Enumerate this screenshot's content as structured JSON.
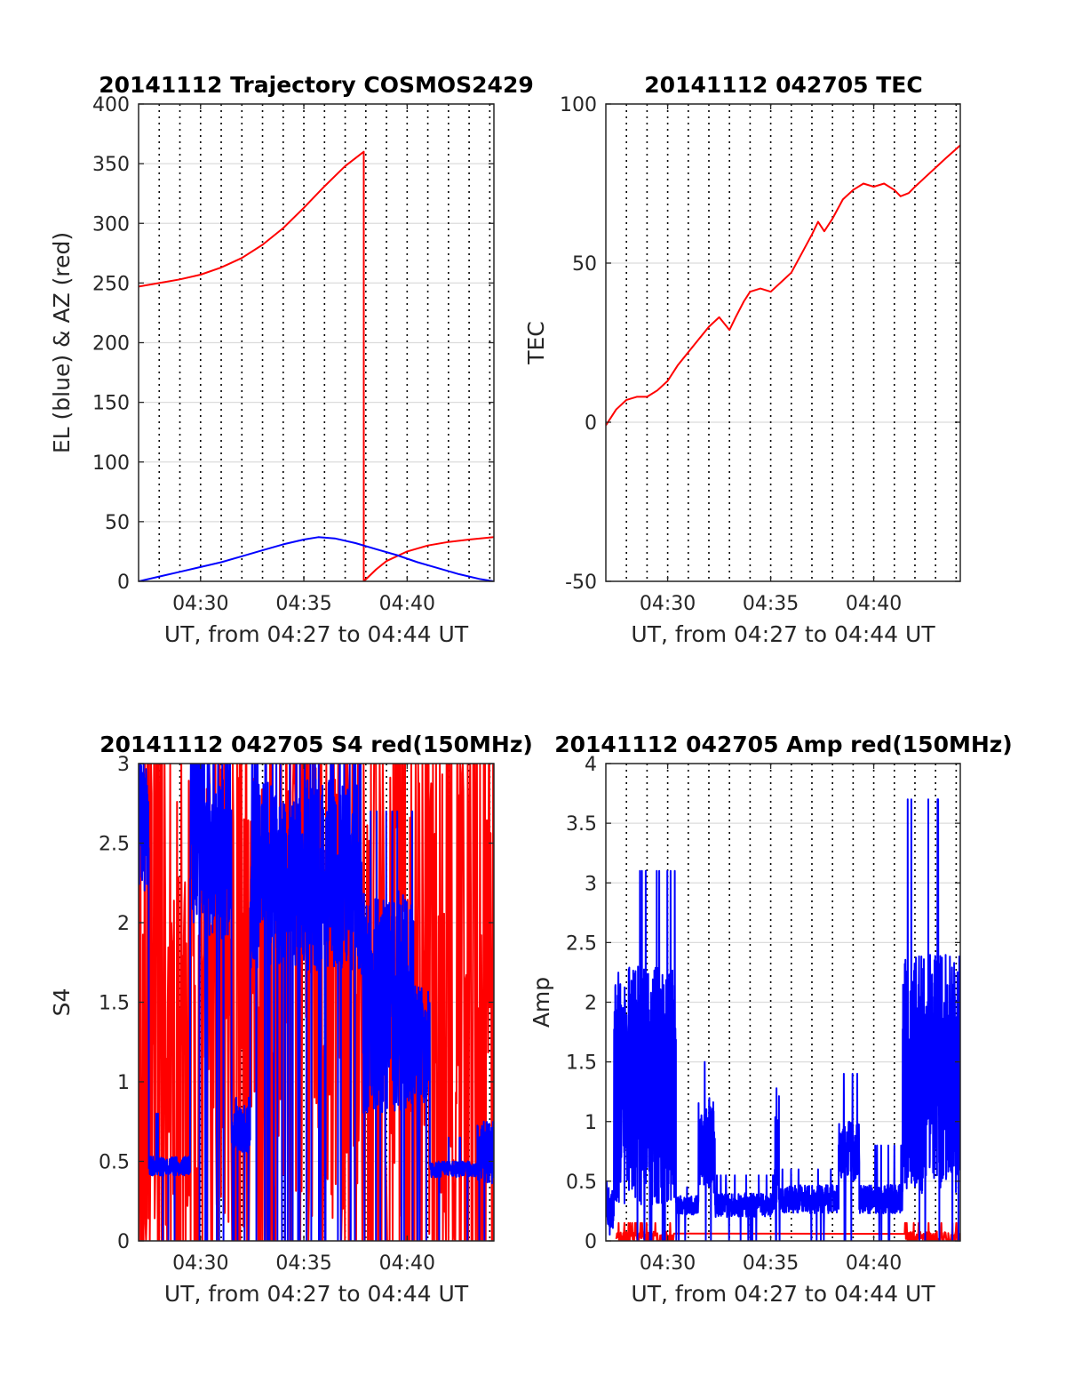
{
  "chart_data": [
    {
      "type": "line",
      "title": "20141112 Trajectory COSMOS2429",
      "xlabel": "UT, from 04:27 to 04:44 UT",
      "ylabel": "EL (blue) & AZ (red)",
      "xlim": [
        27,
        44.2
      ],
      "ylim": [
        0,
        400
      ],
      "xticks": [
        {
          "v": 30,
          "label": "04:30"
        },
        {
          "v": 35,
          "label": "04:35"
        },
        {
          "v": 40,
          "label": "04:40"
        }
      ],
      "yticks": [
        {
          "v": 0,
          "label": "0"
        },
        {
          "v": 50,
          "label": "50"
        },
        {
          "v": 100,
          "label": "100"
        },
        {
          "v": 150,
          "label": "150"
        },
        {
          "v": 200,
          "label": "200"
        },
        {
          "v": 250,
          "label": "250"
        },
        {
          "v": 300,
          "label": "300"
        },
        {
          "v": 350,
          "label": "350"
        },
        {
          "v": 400,
          "label": "400"
        }
      ],
      "grid": {
        "vertical_dotted_every_min": 1,
        "horizontal": true
      },
      "series": [
        {
          "color": "#ff0000",
          "kind": "line",
          "x": [
            27,
            28,
            29,
            30,
            31,
            32,
            33,
            34,
            35,
            36,
            37,
            37.9,
            37.9,
            38.5,
            39,
            40,
            41,
            42,
            43,
            44.2
          ],
          "y": [
            247,
            250,
            253,
            257,
            263,
            271,
            282,
            296,
            313,
            331,
            348,
            360,
            0,
            10,
            17,
            25,
            30,
            33,
            35,
            37
          ]
        },
        {
          "color": "#0000ff",
          "kind": "line",
          "x": [
            27,
            28,
            29,
            30,
            31,
            32,
            33,
            34,
            35,
            35.7,
            36.5,
            37.5,
            38.5,
            39.5,
            40.5,
            41.5,
            42.5,
            43.5,
            44.2
          ],
          "y": [
            0,
            4,
            8,
            12,
            16,
            21,
            26,
            31,
            35,
            37,
            36,
            32,
            27,
            22,
            16,
            11,
            6,
            2,
            0
          ]
        }
      ]
    },
    {
      "type": "line",
      "title": "20141112 042705 TEC",
      "xlabel": "UT, from 04:27 to 04:44 UT",
      "ylabel": "TEC",
      "xlim": [
        27,
        44.2
      ],
      "ylim": [
        -50,
        100
      ],
      "xticks": [
        {
          "v": 30,
          "label": "04:30"
        },
        {
          "v": 35,
          "label": "04:35"
        },
        {
          "v": 40,
          "label": "04:40"
        }
      ],
      "yticks": [
        {
          "v": -50,
          "label": "-50"
        },
        {
          "v": 0,
          "label": "0"
        },
        {
          "v": 50,
          "label": "50"
        },
        {
          "v": 100,
          "label": "100"
        }
      ],
      "grid": {
        "vertical_dotted_every_min": 1,
        "horizontal": true
      },
      "series": [
        {
          "color": "#ff0000",
          "kind": "line",
          "x": [
            27,
            27.5,
            28,
            28.5,
            29,
            29.5,
            30,
            30.5,
            31,
            31.5,
            32,
            32.5,
            33,
            33.3,
            33.7,
            34,
            34.5,
            35,
            35.5,
            36,
            36.5,
            37,
            37.3,
            37.6,
            38,
            38.5,
            39,
            39.5,
            40,
            40.5,
            41,
            41.3,
            41.7,
            42,
            42.5,
            43,
            43.5,
            44.2
          ],
          "y": [
            -1,
            4,
            7,
            8,
            8,
            10,
            13,
            18,
            22,
            26,
            30,
            33,
            29,
            33,
            38,
            41,
            42,
            41,
            44,
            47,
            53,
            59,
            63,
            60,
            64,
            70,
            73,
            75,
            74,
            75,
            73,
            71,
            72,
            74,
            77,
            80,
            83,
            87
          ]
        }
      ]
    },
    {
      "type": "line",
      "title": "20141112 042705 S4 red(150MHz)",
      "xlabel": "UT, from 04:27 to 04:44 UT",
      "ylabel": "S4",
      "xlim": [
        27,
        44.2
      ],
      "ylim": [
        0,
        3
      ],
      "xticks": [
        {
          "v": 30,
          "label": "04:30"
        },
        {
          "v": 35,
          "label": "04:35"
        },
        {
          "v": 40,
          "label": "04:40"
        }
      ],
      "yticks": [
        {
          "v": 0,
          "label": "0"
        },
        {
          "v": 0.5,
          "label": "0.5"
        },
        {
          "v": 1,
          "label": "1"
        },
        {
          "v": 1.5,
          "label": "1.5"
        },
        {
          "v": 2,
          "label": "2"
        },
        {
          "v": 2.5,
          "label": "2.5"
        },
        {
          "v": 3,
          "label": "3"
        }
      ],
      "grid": {
        "vertical_dotted_every_min": 1,
        "horizontal": true
      },
      "series": [
        {
          "color": "#ff0000",
          "kind": "noise",
          "seed": 11,
          "segments": [
            {
              "x0": 27,
              "x1": 44.2,
              "base": 1.5,
              "amp": 1.5,
              "step": 0.03,
              "spike": 0.45,
              "spike_to": 3
            }
          ]
        },
        {
          "color": "#0000ff",
          "kind": "noise",
          "seed": 7,
          "segments": [
            {
              "x0": 27.0,
              "x1": 27.5,
              "base": 2.6,
              "amp": 0.4,
              "step": 0.01,
              "spike": 0.1,
              "spike_to": 3
            },
            {
              "x0": 27.5,
              "x1": 29.5,
              "base": 0.47,
              "amp": 0.06,
              "step": 0.01,
              "spike": 0.02,
              "spike_to": 0.8
            },
            {
              "x0": 29.5,
              "x1": 30.2,
              "base": 2.6,
              "amp": 0.6,
              "step": 0.01,
              "spike": 0.1,
              "spike_to": 3
            },
            {
              "x0": 30.2,
              "x1": 31.5,
              "base": 2.4,
              "amp": 0.5,
              "step": 0.01,
              "spike": 0.1,
              "spike_to": 3
            },
            {
              "x0": 31.5,
              "x1": 32.4,
              "base": 0.7,
              "amp": 0.15,
              "step": 0.01,
              "spike": 0.05,
              "spike_to": 0.9
            },
            {
              "x0": 32.4,
              "x1": 37.8,
              "base": 2.3,
              "amp": 0.6,
              "step": 0.01,
              "spike": 0.1,
              "spike_to": 3
            },
            {
              "x0": 37.8,
              "x1": 40.3,
              "base": 1.5,
              "amp": 0.7,
              "step": 0.01,
              "spike": 0.05,
              "spike_to": 2.7
            },
            {
              "x0": 40.3,
              "x1": 41.1,
              "base": 1.2,
              "amp": 0.4,
              "step": 0.01,
              "spike": 0.05,
              "spike_to": 1.6
            },
            {
              "x0": 41.1,
              "x1": 43.4,
              "base": 0.45,
              "amp": 0.05,
              "step": 0.01,
              "spike": 0.02,
              "spike_to": 0.65
            },
            {
              "x0": 43.4,
              "x1": 44.2,
              "base": 0.55,
              "amp": 0.2,
              "step": 0.01,
              "spike": 0.03,
              "spike_to": 0.9
            }
          ]
        }
      ]
    },
    {
      "type": "line",
      "title": "20141112 042705 Amp red(150MHz)",
      "xlabel": "UT, from 04:27 to 04:44 UT",
      "ylabel": "Amp",
      "xlim": [
        27,
        44.2
      ],
      "ylim": [
        0,
        4
      ],
      "xticks": [
        {
          "v": 30,
          "label": "04:30"
        },
        {
          "v": 35,
          "label": "04:35"
        },
        {
          "v": 40,
          "label": "04:40"
        }
      ],
      "yticks": [
        {
          "v": 0,
          "label": "0"
        },
        {
          "v": 0.5,
          "label": "0.5"
        },
        {
          "v": 1,
          "label": "1"
        },
        {
          "v": 1.5,
          "label": "1.5"
        },
        {
          "v": 2,
          "label": "2"
        },
        {
          "v": 2.5,
          "label": "2.5"
        },
        {
          "v": 3,
          "label": "3"
        },
        {
          "v": 3.5,
          "label": "3.5"
        },
        {
          "v": 4,
          "label": "4"
        }
      ],
      "grid": {
        "vertical_dotted_every_min": 1,
        "horizontal": true
      },
      "series": [
        {
          "color": "#ff0000",
          "kind": "noise",
          "seed": 23,
          "segments": [
            {
              "x0": 27.5,
              "x1": 30.3,
              "base": 0.03,
              "amp": 0.05,
              "step": 0.02,
              "spike": 0.1,
              "spike_to": 0.15
            },
            {
              "x0": 41.5,
              "x1": 44.2,
              "base": 0.03,
              "amp": 0.05,
              "step": 0.02,
              "spike": 0.1,
              "spike_to": 0.15
            }
          ]
        },
        {
          "color": "#0000ff",
          "kind": "noise",
          "seed": 3,
          "segments": [
            {
              "x0": 27.0,
              "x1": 27.4,
              "base": 0.25,
              "amp": 0.2,
              "step": 0.01,
              "spike": 0.05,
              "spike_to": 0.5
            },
            {
              "x0": 27.4,
              "x1": 30.4,
              "base": 1.3,
              "amp": 1.0,
              "step": 0.008,
              "spike": 0.03,
              "spike_to": 3.1
            },
            {
              "x0": 30.4,
              "x1": 31.5,
              "base": 0.3,
              "amp": 0.08,
              "step": 0.01,
              "spike": 0.05,
              "spike_to": 0.45
            },
            {
              "x0": 31.5,
              "x1": 32.3,
              "base": 0.8,
              "amp": 0.4,
              "step": 0.01,
              "spike": 0.05,
              "spike_to": 1.5
            },
            {
              "x0": 32.3,
              "x1": 35.2,
              "base": 0.3,
              "amp": 0.1,
              "step": 0.01,
              "spike": 0.04,
              "spike_to": 0.55
            },
            {
              "x0": 35.2,
              "x1": 35.4,
              "base": 0.8,
              "amp": 0.5,
              "step": 0.01,
              "spike": 0.2,
              "spike_to": 1.6
            },
            {
              "x0": 35.4,
              "x1": 38.3,
              "base": 0.35,
              "amp": 0.12,
              "step": 0.01,
              "spike": 0.04,
              "spike_to": 0.6
            },
            {
              "x0": 38.3,
              "x1": 39.3,
              "base": 0.75,
              "amp": 0.25,
              "step": 0.01,
              "spike": 0.05,
              "spike_to": 1.4
            },
            {
              "x0": 39.3,
              "x1": 41.4,
              "base": 0.35,
              "amp": 0.12,
              "step": 0.01,
              "spike": 0.04,
              "spike_to": 0.8
            },
            {
              "x0": 41.4,
              "x1": 44.2,
              "base": 1.4,
              "amp": 1.0,
              "step": 0.008,
              "spike": 0.03,
              "spike_to": 3.7
            }
          ]
        }
      ]
    }
  ]
}
